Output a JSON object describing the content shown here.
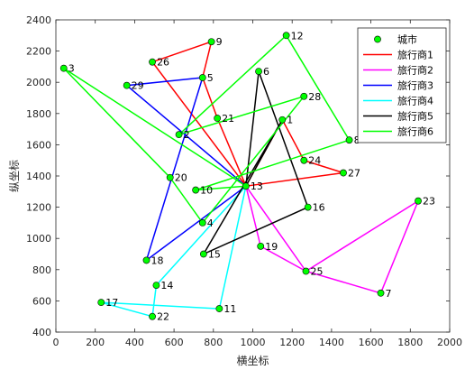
{
  "chart_data": {
    "type": "line",
    "title": "",
    "xlabel": "横坐标",
    "ylabel": "纵坐标",
    "xlim": [
      0,
      2000
    ],
    "ylim": [
      400,
      2400
    ],
    "xticks": [
      0,
      200,
      400,
      600,
      800,
      1000,
      1200,
      1400,
      1600,
      1800,
      2000
    ],
    "yticks": [
      400,
      600,
      800,
      1000,
      1200,
      1400,
      1600,
      1800,
      2000,
      2200,
      2400
    ],
    "grid": false,
    "legend_position": "top-right",
    "depot": [
      965,
      1335
    ],
    "cities": [
      {
        "id": "1",
        "x": 1150,
        "y": 1760
      },
      {
        "id": "2",
        "x": 625,
        "y": 1665
      },
      {
        "id": "3",
        "x": 40,
        "y": 2090
      },
      {
        "id": "4",
        "x": 745,
        "y": 1100
      },
      {
        "id": "5",
        "x": 745,
        "y": 2030
      },
      {
        "id": "6",
        "x": 1030,
        "y": 2070
      },
      {
        "id": "7",
        "x": 1650,
        "y": 650
      },
      {
        "id": "8",
        "x": 1490,
        "y": 1630
      },
      {
        "id": "9",
        "x": 790,
        "y": 2260
      },
      {
        "id": "10",
        "x": 710,
        "y": 1310
      },
      {
        "id": "11",
        "x": 830,
        "y": 550
      },
      {
        "id": "12",
        "x": 1170,
        "y": 2300
      },
      {
        "id": "13",
        "x": 965,
        "y": 1335
      },
      {
        "id": "14",
        "x": 510,
        "y": 700
      },
      {
        "id": "15",
        "x": 750,
        "y": 900
      },
      {
        "id": "16",
        "x": 1280,
        "y": 1200
      },
      {
        "id": "17",
        "x": 230,
        "y": 590
      },
      {
        "id": "18",
        "x": 460,
        "y": 860
      },
      {
        "id": "19",
        "x": 1040,
        "y": 950
      },
      {
        "id": "20",
        "x": 580,
        "y": 1390
      },
      {
        "id": "21",
        "x": 820,
        "y": 1770
      },
      {
        "id": "22",
        "x": 490,
        "y": 500
      },
      {
        "id": "23",
        "x": 1840,
        "y": 1240
      },
      {
        "id": "24",
        "x": 1260,
        "y": 1500
      },
      {
        "id": "25",
        "x": 1270,
        "y": 790
      },
      {
        "id": "26",
        "x": 490,
        "y": 2130
      },
      {
        "id": "27",
        "x": 1460,
        "y": 1420
      },
      {
        "id": "28",
        "x": 1260,
        "y": 1910
      },
      {
        "id": "29",
        "x": 360,
        "y": 1980
      }
    ],
    "city_series": {
      "name": "城市",
      "color": "#00ff00"
    },
    "series": [
      {
        "name": "旅行商1",
        "color": "#ff0000",
        "route": [
          "13",
          "26",
          "9",
          "5",
          "21",
          "13",
          "27",
          "24",
          "1",
          "13"
        ]
      },
      {
        "name": "旅行商2",
        "color": "#ff00ff",
        "route": [
          "13",
          "19",
          "25",
          "23",
          "7",
          "25",
          "13"
        ]
      },
      {
        "name": "旅行商3",
        "color": "#0000ff",
        "route": [
          "13",
          "29",
          "5",
          "18",
          "13"
        ]
      },
      {
        "name": "旅行商4",
        "color": "#00ffff",
        "route": [
          "13",
          "14",
          "22",
          "17",
          "11",
          "13"
        ]
      },
      {
        "name": "旅行商5",
        "color": "#000000",
        "route": [
          "13",
          "6",
          "16",
          "15",
          "1",
          "13"
        ]
      },
      {
        "name": "旅行商6",
        "color": "#00ff00",
        "route": [
          "13",
          "3",
          "20",
          "4",
          "28",
          "2",
          "12",
          "8",
          "10",
          "13"
        ]
      }
    ]
  }
}
